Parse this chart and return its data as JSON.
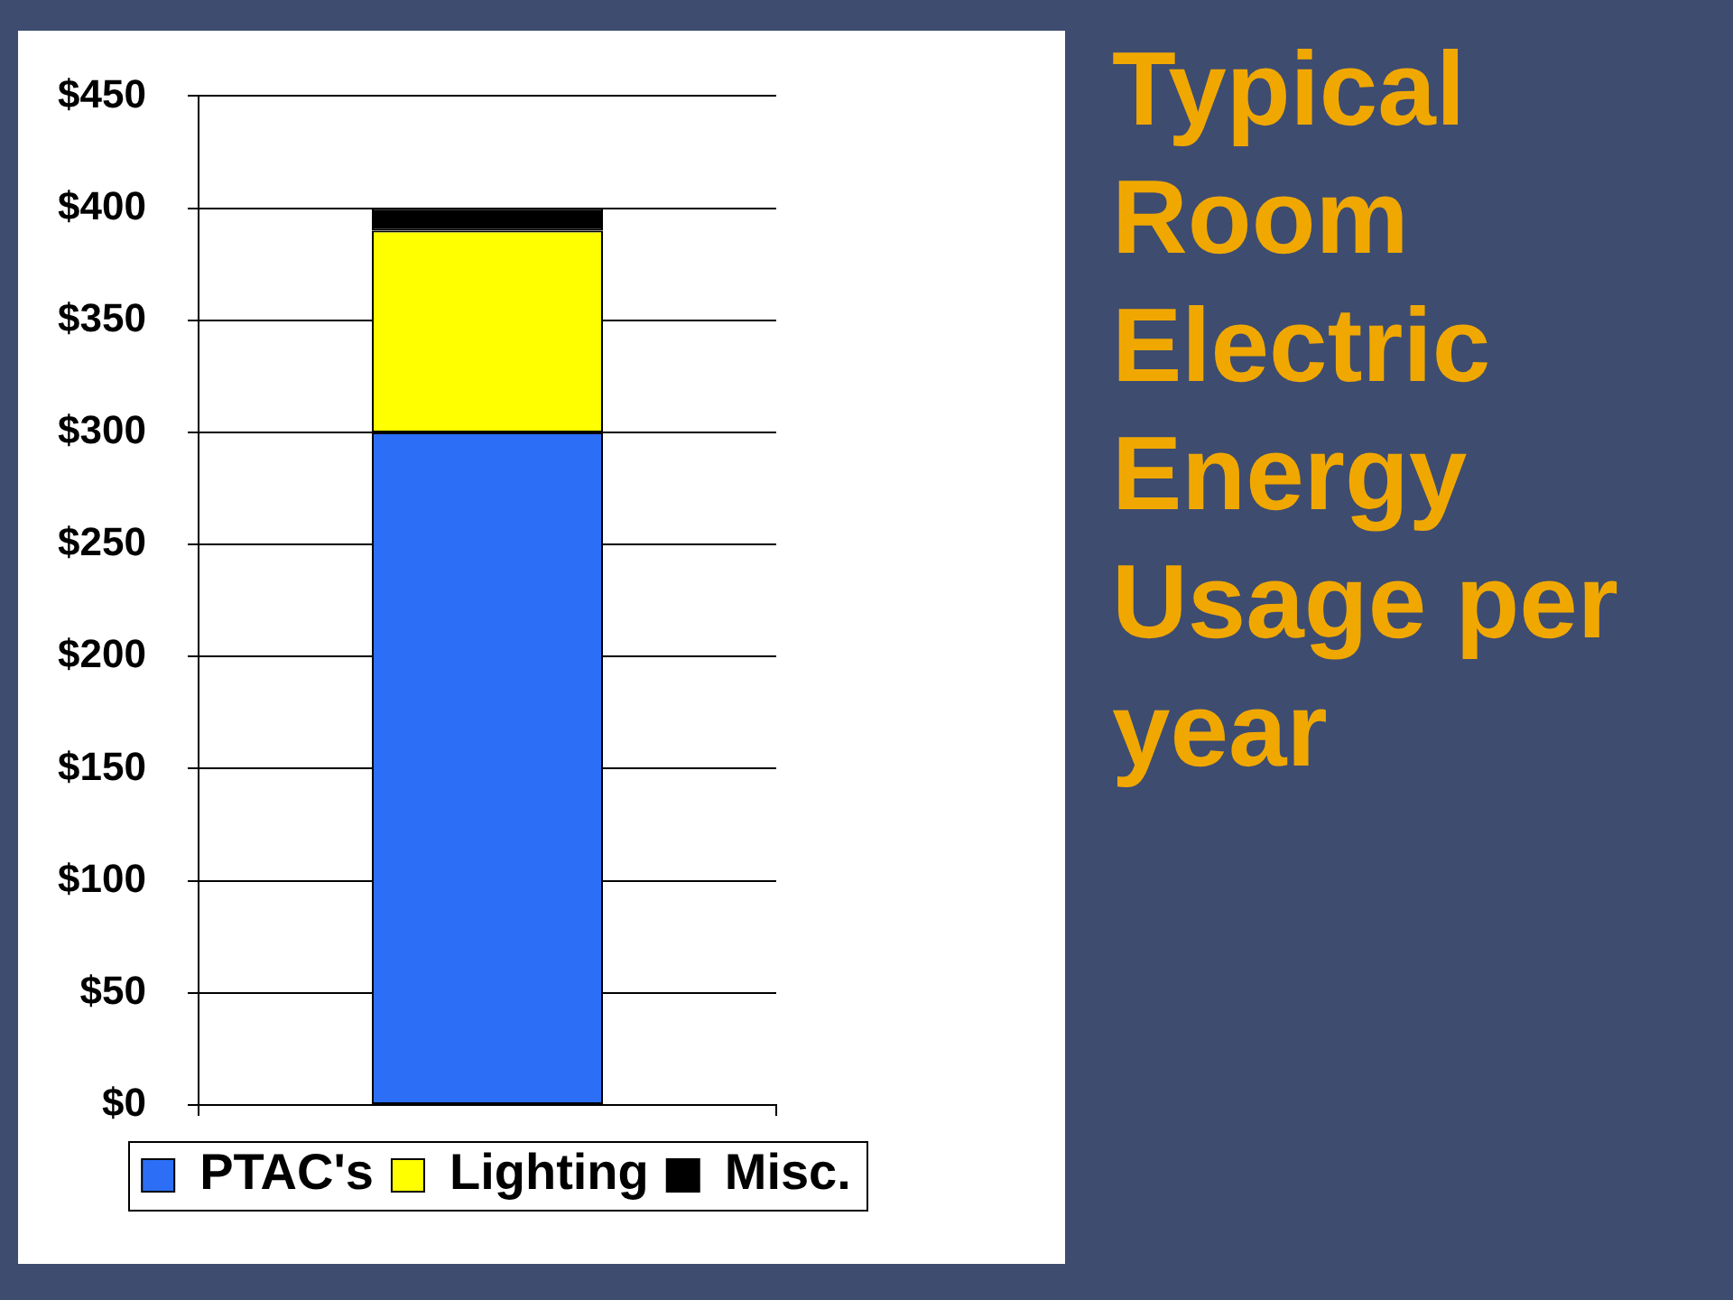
{
  "chart_data": {
    "type": "bar",
    "title": "Typical Room Electric Energy Usage per year",
    "categories": [
      null
    ],
    "series": [
      {
        "name": "PTAC's",
        "color": "#2c6ff6",
        "values": [
          300
        ]
      },
      {
        "name": "Lighting",
        "color": "#ffff00",
        "values": [
          90
        ]
      },
      {
        "name": "Misc.",
        "color": "#000000",
        "values": [
          10
        ]
      }
    ],
    "stacked": true,
    "ylim": [
      0,
      450
    ],
    "yticks": [
      {
        "value": 0,
        "label": "$0"
      },
      {
        "value": 50,
        "label": "$50"
      },
      {
        "value": 100,
        "label": "$100"
      },
      {
        "value": 150,
        "label": "$150"
      },
      {
        "value": 200,
        "label": "$200"
      },
      {
        "value": 250,
        "label": "$250"
      },
      {
        "value": 300,
        "label": "$300"
      },
      {
        "value": 350,
        "label": "$350"
      },
      {
        "value": 400,
        "label": "$400"
      },
      {
        "value": 450,
        "label": "$450"
      }
    ],
    "grid": "y",
    "legend": "bottom"
  }
}
